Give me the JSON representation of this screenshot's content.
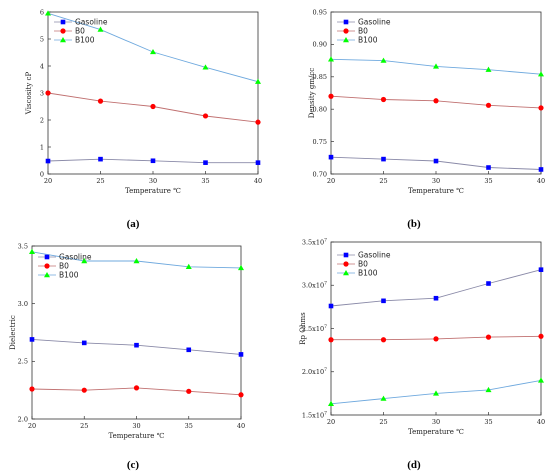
{
  "chart_data": [
    {
      "id": "a",
      "type": "line",
      "caption": "(a)",
      "xlabel": "Temperature ℃",
      "ylabel": "Viscosity cP",
      "x": [
        20,
        25,
        30,
        35,
        40
      ],
      "xticks": [
        "20",
        "25",
        "30",
        "35",
        "40"
      ],
      "ylim": [
        0,
        6
      ],
      "yticks": [
        "0",
        "1",
        "2",
        "3",
        "4",
        "5",
        "6"
      ],
      "legend": "top-left",
      "series": [
        {
          "name": "Gasoline",
          "color": "#0000ff",
          "marker": "square",
          "values": [
            0.48,
            0.55,
            0.49,
            0.42,
            0.42
          ]
        },
        {
          "name": "B0",
          "color": "#ff0000",
          "marker": "circle",
          "values": [
            3.0,
            2.7,
            2.5,
            2.15,
            1.92
          ]
        },
        {
          "name": "B100",
          "color": "#00ff00",
          "marker": "triangle",
          "values": [
            5.95,
            5.35,
            4.52,
            3.95,
            3.42
          ]
        }
      ]
    },
    {
      "id": "b",
      "type": "line",
      "caption": "(b)",
      "xlabel": "Temperature ℃",
      "ylabel": "Density gm/cc",
      "x": [
        20,
        25,
        30,
        35,
        40
      ],
      "xticks": [
        "20",
        "25",
        "30",
        "35",
        "40"
      ],
      "ylim": [
        0.7,
        0.95
      ],
      "yticks": [
        "0.70",
        "0.75",
        "0.80",
        "0.85",
        "0.90",
        "0.95"
      ],
      "legend": "top-left",
      "series": [
        {
          "name": "Gasoline",
          "color": "#0000ff",
          "marker": "square",
          "values": [
            0.726,
            0.723,
            0.72,
            0.71,
            0.707
          ]
        },
        {
          "name": "B0",
          "color": "#ff0000",
          "marker": "circle",
          "values": [
            0.82,
            0.815,
            0.813,
            0.806,
            0.802
          ]
        },
        {
          "name": "B100",
          "color": "#00ff00",
          "marker": "triangle",
          "values": [
            0.877,
            0.875,
            0.866,
            0.861,
            0.854
          ]
        }
      ]
    },
    {
      "id": "c",
      "type": "line",
      "caption": "(c)",
      "xlabel": "Temperature ℃",
      "ylabel": "Dielectric",
      "x": [
        20,
        25,
        30,
        35,
        40
      ],
      "xticks": [
        "20",
        "25",
        "30",
        "35",
        "40"
      ],
      "ylim": [
        2.0,
        3.5
      ],
      "yticks": [
        "2.0",
        "2.5",
        "3.0",
        "3.5"
      ],
      "legend": "top-left",
      "series": [
        {
          "name": "Gasoline",
          "color": "#0000ff",
          "marker": "square",
          "values": [
            2.69,
            2.66,
            2.64,
            2.6,
            2.56
          ]
        },
        {
          "name": "B0",
          "color": "#ff0000",
          "marker": "circle",
          "values": [
            2.26,
            2.25,
            2.27,
            2.24,
            2.21
          ]
        },
        {
          "name": "B100",
          "color": "#00ff00",
          "marker": "triangle",
          "values": [
            3.45,
            3.37,
            3.37,
            3.32,
            3.31
          ]
        }
      ]
    },
    {
      "id": "d",
      "type": "line",
      "caption": "(d)",
      "xlabel": "Temperature ℃",
      "ylabel": "Rp Ohms",
      "x": [
        20,
        25,
        30,
        35,
        40
      ],
      "xticks": [
        "20",
        "25",
        "30",
        "35",
        "40"
      ],
      "ylim": [
        15000000,
        35000000
      ],
      "yticks": [
        "1.5x10",
        "2.0x10",
        "2.5x10",
        "3.0x10",
        "3.5x10"
      ],
      "ytick_exponent": "7",
      "legend": "top-left",
      "series": [
        {
          "name": "Gasoline",
          "color": "#0000ff",
          "marker": "square",
          "values": [
            27600000,
            28200000,
            28500000,
            30200000,
            31800000
          ]
        },
        {
          "name": "B0",
          "color": "#ff0000",
          "marker": "circle",
          "values": [
            23700000,
            23700000,
            23800000,
            24000000,
            24100000
          ]
        },
        {
          "name": "B100",
          "color": "#00ff00",
          "marker": "triangle",
          "values": [
            16300000,
            16900000,
            17500000,
            17900000,
            19000000
          ]
        }
      ]
    }
  ]
}
